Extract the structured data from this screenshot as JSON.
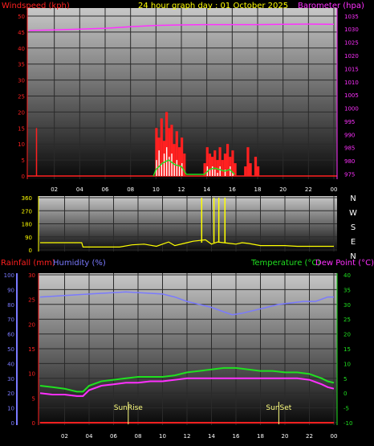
{
  "header": {
    "title": "24 hour graph day : 01 October 2025",
    "left_label": "Windspeed (kph)",
    "right_label": "Barometer (hpa)"
  },
  "colors": {
    "wind_red": "#ff2020",
    "gust_white": "#ffffff",
    "avg_green": "#20e020",
    "barometer": "#ff30ff",
    "direction": "#ffff00",
    "humidity": "#7a7aff",
    "temperature": "#20e020",
    "dewpoint": "#ff30ff",
    "rain": "#ff2020",
    "sun": "#ffff80"
  },
  "chart_data": [
    {
      "type": "line",
      "name": "wind_barometer",
      "title": "24 hour graph day : 01 October 2025",
      "ylabel": "Windspeed (kph)",
      "y2label": "Barometer (hpa)",
      "x_ticks": [
        "02",
        "04",
        "06",
        "08",
        "10",
        "12",
        "14",
        "16",
        "18",
        "20",
        "22",
        "00"
      ],
      "ylim": [
        0,
        50
      ],
      "y_ticks": [
        0,
        5,
        10,
        15,
        20,
        25,
        30,
        35,
        40,
        45,
        50
      ],
      "y2lim": [
        973,
        1038
      ],
      "y2_ticks": [
        975,
        980,
        985,
        990,
        995,
        1000,
        1005,
        1010,
        1015,
        1020,
        1025,
        1030,
        1035
      ],
      "series": [
        {
          "name": "barometer",
          "axis": "right",
          "x": [
            0,
            2,
            4,
            6,
            8,
            10,
            12,
            14,
            16,
            18,
            20,
            22,
            24
          ],
          "values": [
            1029.5,
            1029.7,
            1030.0,
            1030.3,
            1030.9,
            1031.4,
            1031.6,
            1031.7,
            1031.7,
            1031.7,
            1031.8,
            1031.9,
            1031.8
          ]
        },
        {
          "name": "windspeed",
          "axis": "left",
          "x": [
            10.0,
            10.2,
            10.4,
            10.6,
            10.8,
            11.0,
            11.2,
            11.4,
            11.6,
            11.8,
            12.0,
            12.2,
            13.8,
            14.0,
            14.2,
            14.4,
            14.6,
            14.8,
            15.0,
            15.2,
            15.4,
            15.6,
            15.8,
            16.0,
            16.2,
            17.0,
            17.2,
            17.4,
            17.8,
            18.0
          ],
          "values": [
            15,
            12,
            18,
            11,
            20,
            15,
            16,
            10,
            14,
            9,
            12,
            7,
            4,
            9,
            7,
            6,
            8,
            5,
            9,
            5,
            7,
            10,
            6,
            8,
            4,
            3,
            9,
            4,
            6,
            3
          ]
        },
        {
          "name": "gust",
          "axis": "left",
          "x": [
            10.0,
            10.2,
            10.4,
            10.6,
            10.8,
            11.0,
            11.2,
            11.4,
            11.6,
            11.8,
            12.0,
            14.0,
            14.2,
            14.4,
            14.6,
            14.8,
            15.0,
            15.4,
            15.8,
            16.0
          ],
          "values": [
            5,
            8,
            4,
            7,
            9,
            6,
            7,
            4,
            5,
            3,
            4,
            3,
            2,
            3,
            2,
            1,
            3,
            2,
            3,
            1
          ]
        },
        {
          "name": "average",
          "axis": "left",
          "x": [
            9.8,
            10.0,
            10.5,
            11.0,
            11.5,
            12.0,
            12.4,
            13.8,
            14.2,
            14.6,
            15.0,
            15.4,
            15.8,
            16.2
          ],
          "values": [
            0,
            2,
            4,
            5,
            3.5,
            3,
            0.5,
            0.5,
            2,
            2.5,
            2,
            1.5,
            2,
            0.5
          ]
        }
      ],
      "spikes": [
        {
          "x": 0.6,
          "value": 15
        }
      ]
    },
    {
      "type": "line",
      "name": "wind_direction",
      "ylim": [
        0,
        360
      ],
      "y_ticks": [
        0,
        90,
        180,
        270,
        360
      ],
      "compass": [
        "N",
        "W",
        "S",
        "E",
        "N"
      ],
      "series": [
        {
          "name": "direction",
          "x": [
            0,
            3.4,
            3.5,
            6.5,
            7.5,
            8.5,
            9.5,
            10.5,
            11.0,
            12.0,
            12.5,
            13.0,
            13.5,
            14.0,
            14.5,
            15.0,
            15.5,
            16.0,
            16.5,
            17.0,
            18.0,
            19.0,
            20.0,
            21.0,
            22.0,
            24.0
          ],
          "values": [
            50,
            50,
            20,
            20,
            35,
            40,
            25,
            55,
            30,
            50,
            60,
            65,
            70,
            40,
            55,
            50,
            45,
            40,
            50,
            45,
            30,
            30,
            30,
            25,
            25,
            25
          ]
        }
      ],
      "spikes": [
        {
          "x": 13.2,
          "value": 360
        },
        {
          "x": 14.2,
          "value": 360
        },
        {
          "x": 14.6,
          "value": 360
        },
        {
          "x": 15.1,
          "value": 360
        }
      ]
    },
    {
      "type": "line",
      "name": "temp_humidity",
      "labels": {
        "rainfall": "Rainfall (mm)",
        "humidity": "Humidity (%)",
        "temperature": "Temperature (°C)",
        "dewpoint": "Dew Point (°C)"
      },
      "sunrise_label": "SunRise",
      "sunset_label": "SunSet",
      "sunrise_x": 7.2,
      "sunset_x": 19.5,
      "x_ticks": [
        "02",
        "04",
        "06",
        "08",
        "10",
        "12",
        "14",
        "16",
        "18",
        "20",
        "22",
        "00"
      ],
      "humidity_lim": [
        0,
        100
      ],
      "humidity_ticks": [
        0,
        10,
        20,
        30,
        40,
        50,
        60,
        70,
        80,
        90,
        100
      ],
      "rain_lim": [
        0,
        30
      ],
      "rain_ticks": [
        0,
        5,
        10,
        15,
        20,
        25,
        30
      ],
      "temp_lim": [
        -10,
        40
      ],
      "temp_ticks": [
        -10,
        -5,
        0,
        5,
        10,
        15,
        20,
        25,
        30,
        35,
        40
      ],
      "series": [
        {
          "name": "humidity",
          "axis": "humidity",
          "x": [
            0,
            2,
            4,
            6,
            7,
            8,
            9,
            10,
            11,
            12,
            13,
            14,
            15,
            15.7,
            16.5,
            17.5,
            18.5,
            19.5,
            20.5,
            21.5,
            22.5,
            23.5,
            24
          ],
          "values": [
            85,
            86,
            87,
            88,
            88.5,
            88,
            87.5,
            87,
            85,
            82,
            80,
            78,
            75,
            73,
            74,
            76,
            78,
            80,
            81,
            82,
            82,
            85,
            85
          ]
        },
        {
          "name": "temperature",
          "axis": "temp",
          "x": [
            0,
            1,
            2,
            3,
            3.5,
            4,
            5,
            6,
            7,
            8,
            9,
            10,
            11,
            12,
            13,
            14,
            15,
            16,
            17,
            18,
            19,
            20,
            21,
            22,
            23,
            23.5,
            24
          ],
          "values": [
            2.5,
            2.0,
            1.5,
            0.5,
            0.5,
            2.5,
            4.0,
            4.5,
            5.0,
            5.5,
            5.5,
            5.5,
            6.0,
            7.0,
            7.5,
            8.0,
            8.5,
            8.5,
            8.0,
            7.5,
            7.5,
            7.0,
            7.0,
            6.5,
            5.0,
            4.0,
            3.5
          ]
        },
        {
          "name": "dewpoint",
          "axis": "temp",
          "x": [
            0,
            1,
            2,
            3,
            3.5,
            4,
            5,
            6,
            7,
            8,
            9,
            10,
            11,
            12,
            13,
            14,
            15,
            16,
            17,
            18,
            19,
            20,
            21,
            22,
            23,
            23.5,
            24
          ],
          "values": [
            0,
            -0.5,
            -0.5,
            -1.0,
            -1.0,
            1.0,
            2.5,
            3.0,
            3.5,
            3.5,
            4.0,
            4.0,
            4.5,
            5.0,
            5.0,
            5.0,
            5.0,
            5.0,
            5.0,
            5.0,
            5.0,
            5.0,
            5.0,
            4.5,
            3.0,
            2.0,
            1.5
          ]
        },
        {
          "name": "rainfall",
          "axis": "rain",
          "x": [
            0,
            24
          ],
          "values": [
            0,
            0
          ]
        }
      ]
    }
  ]
}
